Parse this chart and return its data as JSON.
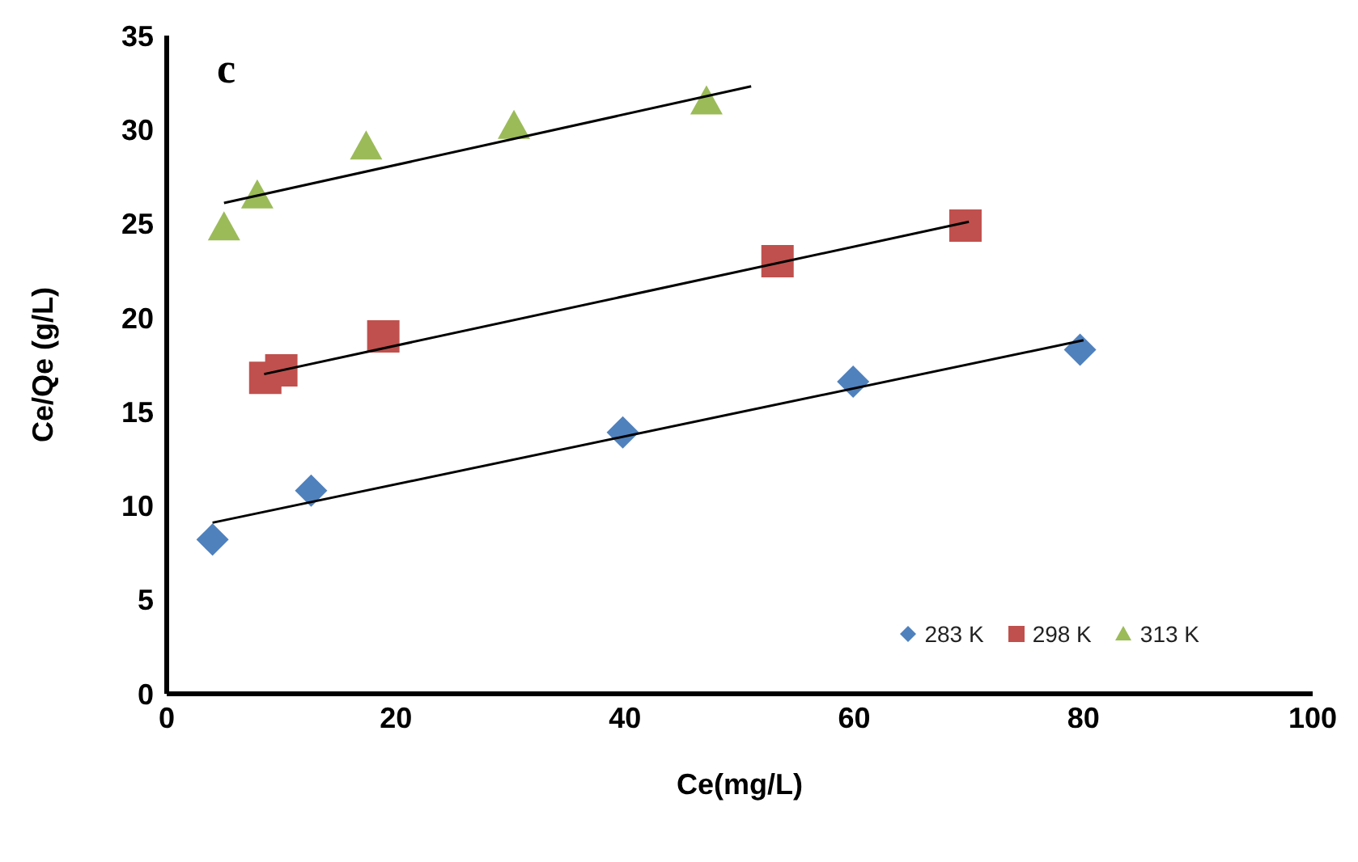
{
  "chart_data": {
    "type": "scatter",
    "xlabel": "Ce(mg/L)",
    "ylabel": "Ce/Qe (g/L)",
    "annotations": [
      "c"
    ],
    "xlim": [
      0,
      100
    ],
    "xticks": [
      0,
      20,
      40,
      60,
      80,
      100
    ],
    "ylim": [
      0,
      35
    ],
    "yticks": [
      0,
      5,
      10,
      15,
      20,
      25,
      30,
      35
    ],
    "grid": false,
    "legend": "bottom right",
    "series": [
      {
        "name": "283 K",
        "color": "#4f81bd",
        "marker": "diamond",
        "x": [
          4,
          12.6,
          39.8,
          59.9,
          79.7
        ],
        "values": [
          8.2,
          10.8,
          13.9,
          16.6,
          18.3
        ]
      },
      {
        "name": "298 K",
        "color": "#c0504d",
        "marker": "square",
        "x": [
          8.6,
          10,
          18.9,
          53.3,
          69.7
        ],
        "values": [
          16.8,
          17.2,
          19.0,
          23.0,
          24.9
        ]
      },
      {
        "name": "313 K",
        "color": "#9bbb59",
        "marker": "triangle",
        "x": [
          5,
          7.9,
          17.4,
          30.3,
          47.1
        ],
        "values": [
          24.8,
          26.5,
          29.1,
          30.2,
          31.5
        ]
      },
      {
        "type": "line",
        "color": "#000000",
        "x": [
          4,
          80
        ],
        "values": [
          9.1,
          18.8
        ]
      },
      {
        "type": "line",
        "color": "#000000",
        "x": [
          8.5,
          70
        ],
        "values": [
          17.0,
          25.1
        ]
      },
      {
        "type": "line",
        "color": "#000000",
        "x": [
          5,
          51
        ],
        "values": [
          26.1,
          32.3
        ]
      }
    ]
  }
}
